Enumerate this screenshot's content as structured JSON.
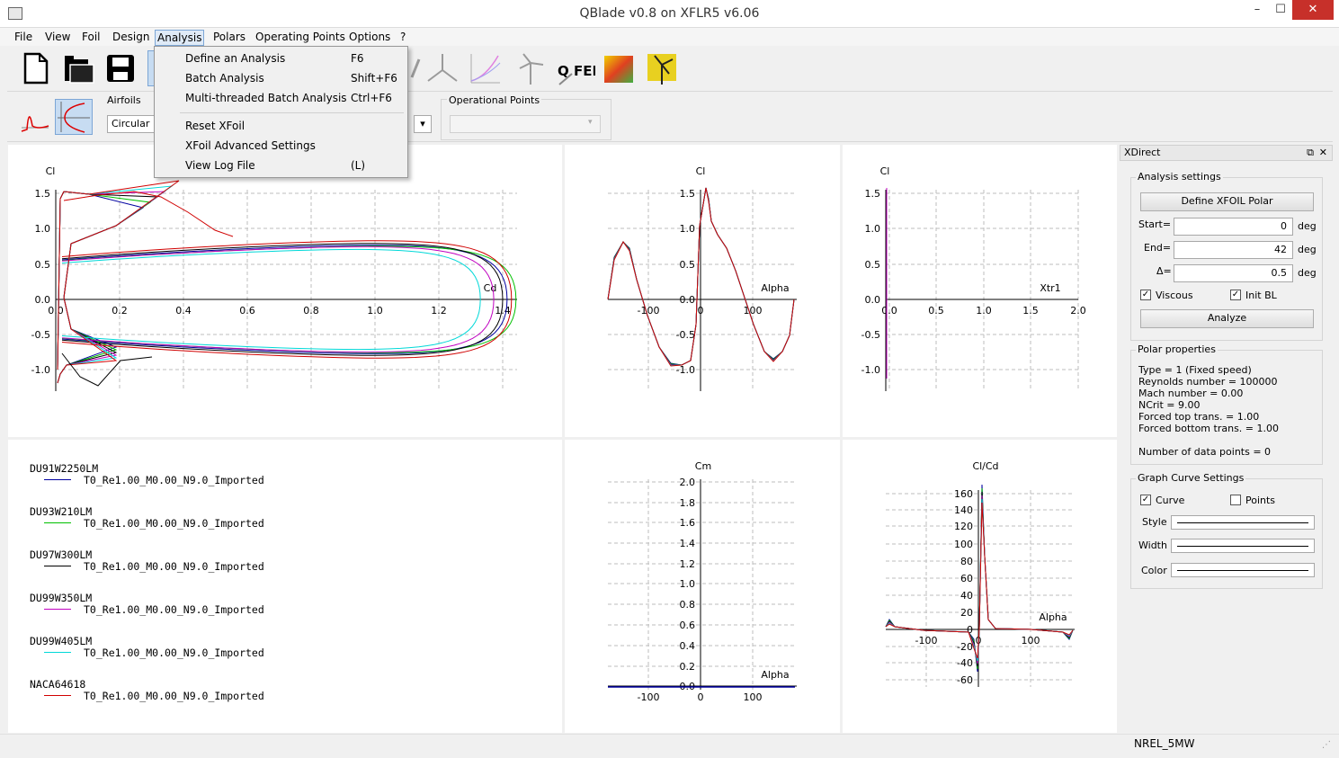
{
  "window": {
    "title": "QBlade v0.8 on XFLR5 v6.06",
    "min": "–",
    "max": "☐",
    "close": "✕"
  },
  "menu": [
    "File",
    "View",
    "Foil",
    "Design",
    "Analysis",
    "Polars",
    "Operating Points",
    "Options",
    "?"
  ],
  "toolbar": {
    "qfem_label": "Q FEM"
  },
  "subbar": {
    "airfoils_label": "Airfoils",
    "airfoil_value": "Circular Fo",
    "oppoints_label": "Operational Points",
    "oppoint_value": ""
  },
  "analysis_menu": {
    "items": [
      {
        "label": "Define an Analysis",
        "shortcut": "F6"
      },
      {
        "label": "Batch Analysis",
        "shortcut": "Shift+F6"
      },
      {
        "label": "Multi-threaded Batch Analysis",
        "shortcut": "Ctrl+F6"
      },
      {
        "label": "Reset XFoil",
        "shortcut": ""
      },
      {
        "label": "XFoil Advanced Settings",
        "shortcut": ""
      },
      {
        "label": "View Log File",
        "shortcut": "(L)"
      }
    ]
  },
  "graphs": {
    "cl_cd": {
      "ylabel": "Cl",
      "xlabel": "Cd",
      "xticks": [
        "0.0",
        "0.2",
        "0.4",
        "0.6",
        "0.8",
        "1.0",
        "1.2",
        "1.4"
      ],
      "yticks": [
        "1.5",
        "1.0",
        "0.5",
        "0.0",
        "-0.5",
        "-1.0"
      ]
    },
    "cl_alpha": {
      "ylabel": "Cl",
      "xlabel": "Alpha",
      "xticks": [
        "-100",
        "0",
        "100"
      ],
      "yticks": [
        "1.5",
        "1.0",
        "0.5",
        "0.0",
        "-0.5",
        "-1.0"
      ]
    },
    "cl_xtr": {
      "ylabel": "Cl",
      "xlabel": "Xtr1",
      "xticks": [
        "0.0",
        "0.5",
        "1.0",
        "1.5",
        "2.0"
      ],
      "yticks": [
        "1.5",
        "1.0",
        "0.5",
        "0.0",
        "-0.5",
        "-1.0"
      ]
    },
    "cm_alpha": {
      "ylabel": "Cm",
      "xlabel": "Alpha",
      "xticks": [
        "-100",
        "0",
        "100"
      ],
      "yticks": [
        "2.0",
        "1.8",
        "1.6",
        "1.4",
        "1.2",
        "1.0",
        "0.8",
        "0.6",
        "0.4",
        "0.2",
        "0.0"
      ]
    },
    "clcd_alpha": {
      "ylabel": "Cl/Cd",
      "xlabel": "Alpha",
      "xticks": [
        "-100",
        "0",
        "100"
      ],
      "yticks": [
        "160",
        "140",
        "120",
        "100",
        "80",
        "60",
        "40",
        "20",
        "0",
        "-20",
        "-40",
        "-60"
      ]
    }
  },
  "legend": [
    {
      "foil": "DU91W2250LM",
      "polar": "T0_Re1.00_M0.00_N9.0_Imported",
      "color": "#0000a0"
    },
    {
      "foil": "DU93W210LM",
      "polar": "T0_Re1.00_M0.00_N9.0_Imported",
      "color": "#00c000"
    },
    {
      "foil": "DU97W300LM",
      "polar": "T0_Re1.00_M0.00_N9.0_Imported",
      "color": "#000000"
    },
    {
      "foil": "DU99W350LM",
      "polar": "T0_Re1.00_M0.00_N9.0_Imported",
      "color": "#c000c0"
    },
    {
      "foil": "DU99W405LM",
      "polar": "T0_Re1.00_M0.00_N9.0_Imported",
      "color": "#00d8d8"
    },
    {
      "foil": "NACA64618",
      "polar": "T0_Re1.00_M0.00_N9.0_Imported",
      "color": "#d00000"
    }
  ],
  "xdirect": {
    "title": "XDirect",
    "analysis_settings": "Analysis settings",
    "define_polar": "Define XFOIL Polar",
    "start_label": "Start=",
    "start_value": "0",
    "end_label": "End=",
    "end_value": "42",
    "delta_label": "Δ=",
    "delta_value": "0.5",
    "unit": "deg",
    "viscous": "Viscous",
    "init_bl": "Init BL",
    "analyze": "Analyze",
    "polar_properties": "Polar properties",
    "props": [
      "Type = 1 (Fixed speed)",
      "Reynolds number = 100000",
      "Mach number =  0.00",
      "NCrit =   9.00",
      "Forced top trans. =   1.00",
      "Forced bottom trans. =   1.00",
      "",
      "Number of data points = 0"
    ],
    "curve_settings": "Graph Curve Settings",
    "curve": "Curve",
    "points": "Points",
    "style": "Style",
    "width": "Width",
    "color": "Color"
  },
  "status": {
    "project": "NREL_5MW"
  }
}
